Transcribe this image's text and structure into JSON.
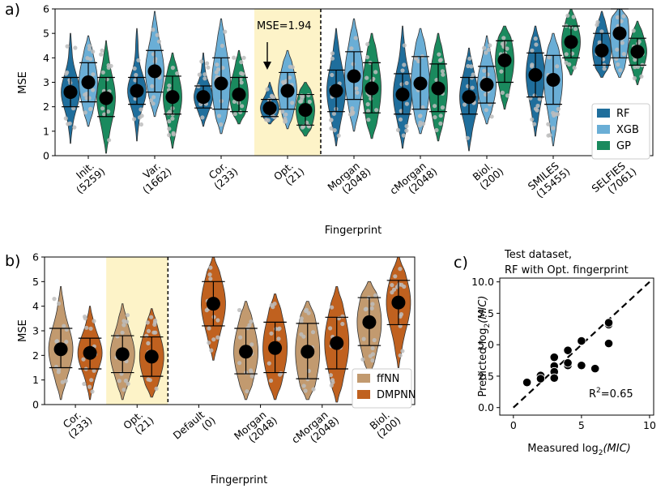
{
  "panel_labels": {
    "a": "a)",
    "b": "b)",
    "c": "c)"
  },
  "colors": {
    "RF": "#1f6e9c",
    "XGB": "#6aaed6",
    "GP": "#1a8a5e",
    "ffNN": "#c29a6f",
    "DMPNN": "#c0611f",
    "highlight": "#fdf3c8",
    "point": "#bdbdbd",
    "mean": "#000000"
  },
  "chart_data": [
    {
      "type": "violin",
      "panel": "a",
      "ylabel": "MSE",
      "xlabel": "Fingerprint",
      "ylim": [
        0,
        6
      ],
      "yticks": [
        "0",
        "1",
        "2",
        "3",
        "4",
        "5",
        "6"
      ],
      "categories": [
        {
          "name": "Init.",
          "size": "(5259)"
        },
        {
          "name": "Var.",
          "size": "(1662)"
        },
        {
          "name": "Cor.",
          "size": "(233)"
        },
        {
          "name": "Opt.",
          "size": "(21)"
        },
        {
          "name": "Morgan",
          "size": "(2048)"
        },
        {
          "name": "cMorgan",
          "size": "(2048)"
        },
        {
          "name": "Biol.",
          "size": "(200)"
        },
        {
          "name": "SMILES",
          "size": "(15455)"
        },
        {
          "name": "SELFIES",
          "size": "(7061)"
        }
      ],
      "highlight_category": "Opt.",
      "annotation": "MSE=1.94",
      "legend": [
        "RF",
        "XGB",
        "GP"
      ],
      "legend_position": "lower-right",
      "series": [
        {
          "name": "RF",
          "mean": [
            2.6,
            2.65,
            2.4,
            1.94,
            2.65,
            2.5,
            2.4,
            3.3,
            4.3
          ],
          "lower": [
            2.0,
            2.1,
            1.95,
            1.6,
            1.8,
            1.7,
            1.7,
            2.4,
            3.7
          ],
          "upper": [
            3.2,
            3.2,
            2.85,
            2.3,
            3.5,
            3.35,
            3.2,
            4.2,
            5.0
          ],
          "min": [
            0.5,
            0.6,
            1.2,
            1.3,
            0.4,
            0.3,
            0.2,
            0.8,
            3.2
          ],
          "max": [
            5.0,
            5.2,
            4.2,
            3.0,
            5.2,
            5.3,
            4.4,
            5.3,
            5.9
          ]
        },
        {
          "name": "XGB",
          "mean": [
            3.0,
            3.45,
            2.95,
            2.65,
            3.25,
            2.95,
            2.9,
            3.1,
            5.0
          ],
          "lower": [
            2.2,
            2.6,
            1.9,
            1.9,
            2.3,
            1.9,
            2.15,
            2.1,
            4.0
          ],
          "upper": [
            3.8,
            4.3,
            4.0,
            3.4,
            4.25,
            4.05,
            3.65,
            4.1,
            6.0
          ],
          "min": [
            1.2,
            1.6,
            0.9,
            1.1,
            1.0,
            0.9,
            1.3,
            0.4,
            3.2
          ],
          "max": [
            4.9,
            5.9,
            5.6,
            4.3,
            5.6,
            5.2,
            4.9,
            5.0,
            6.0
          ]
        },
        {
          "name": "GP",
          "mean": [
            2.35,
            2.4,
            2.5,
            1.87,
            2.75,
            2.75,
            3.9,
            4.65,
            4.25
          ],
          "lower": [
            1.6,
            1.7,
            1.8,
            1.25,
            1.75,
            1.8,
            3.0,
            4.0,
            3.7
          ],
          "upper": [
            3.2,
            3.25,
            3.2,
            2.5,
            3.8,
            3.75,
            4.7,
            5.3,
            4.8
          ],
          "min": [
            0.1,
            0.3,
            1.3,
            0.8,
            0.7,
            0.6,
            1.9,
            3.3,
            2.9
          ],
          "max": [
            4.7,
            4.2,
            4.3,
            3.0,
            5.0,
            5.0,
            5.3,
            6.0,
            5.5
          ]
        }
      ]
    },
    {
      "type": "violin",
      "panel": "b",
      "ylabel": "MSE",
      "xlabel": "Fingerprint",
      "ylim": [
        0,
        6
      ],
      "yticks": [
        "0",
        "1",
        "2",
        "3",
        "4",
        "5",
        "6"
      ],
      "categories": [
        {
          "name": "Cor.",
          "size": "(233)"
        },
        {
          "name": "Opt.",
          "size": "(21)"
        },
        {
          "name": "Default",
          "size": "(0)"
        },
        {
          "name": "Morgan",
          "size": "(2048)"
        },
        {
          "name": "cMorgan",
          "size": "(2048)"
        },
        {
          "name": "Biol.",
          "size": "(200)"
        }
      ],
      "highlight_category": "Opt.",
      "legend": [
        "ffNN",
        "DMPNN"
      ],
      "legend_position": "lower-right",
      "series": [
        {
          "name": "ffNN",
          "mean": [
            2.25,
            2.05,
            null,
            2.15,
            2.15,
            3.35
          ],
          "lower": [
            1.5,
            1.3,
            null,
            1.25,
            1.05,
            2.4
          ],
          "upper": [
            3.1,
            2.8,
            null,
            3.1,
            3.3,
            4.35
          ],
          "min": [
            0.2,
            0.2,
            null,
            0.2,
            0.2,
            1.2
          ],
          "max": [
            4.8,
            4.1,
            null,
            4.2,
            4.2,
            5.0
          ]
        },
        {
          "name": "DMPNN",
          "mean": [
            2.1,
            1.95,
            4.1,
            2.3,
            2.5,
            4.15
          ],
          "lower": [
            1.45,
            1.15,
            3.2,
            1.3,
            1.45,
            3.25
          ],
          "upper": [
            2.7,
            2.75,
            5.0,
            3.35,
            3.55,
            5.05
          ],
          "min": [
            0.2,
            0.3,
            1.8,
            0.2,
            0.1,
            1.5
          ],
          "max": [
            4.0,
            3.9,
            6.0,
            4.5,
            4.8,
            6.0
          ]
        }
      ]
    },
    {
      "type": "scatter",
      "panel": "c",
      "title": [
        "Test dataset,",
        "RF with Opt. fingerprint"
      ],
      "xlabel": "Measured log",
      "xlabel_sub": "2",
      "xlabel_var": "(MIC)",
      "ylabel": "Predicted log",
      "ylabel_sub": "2",
      "ylabel_var": "(MIC)",
      "xlim": [
        -1,
        10.3
      ],
      "ylim": [
        -0.6,
        10.3
      ],
      "xticks": [
        0,
        5,
        10
      ],
      "yticks": [
        "0.0",
        "2.5",
        "5.0",
        "7.5",
        "10.0"
      ],
      "r2_label": "R",
      "r2_sup": "2",
      "r2_value": "=0.65",
      "x": [
        1,
        2,
        2,
        3,
        3,
        3,
        3,
        4,
        4,
        4,
        5,
        5,
        6,
        7,
        7,
        7
      ],
      "y": [
        2.0,
        2.55,
        2.3,
        4.0,
        3.3,
        2.85,
        2.35,
        4.55,
        3.35,
        3.55,
        5.3,
        3.35,
        3.1,
        6.6,
        6.75,
        5.1
      ]
    }
  ]
}
